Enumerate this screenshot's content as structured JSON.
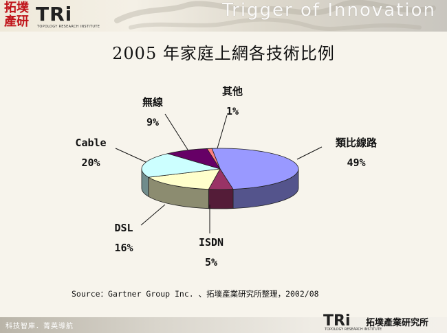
{
  "header": {
    "logo_cn": "拓墣產研",
    "logo_tri": "TRi",
    "logo_sub": "TOPOLOGY RESEARCH INSTITUTE",
    "tagline": "Trigger of Innovation"
  },
  "chart_data": {
    "type": "pie",
    "title": "2005 年家庭上網各技術比例",
    "slices": [
      {
        "label": "類比線路",
        "value": 49,
        "value_label": "49%",
        "color": "#9999ff"
      },
      {
        "label": "ISDN",
        "value": 5,
        "value_label": "5%",
        "color": "#993366"
      },
      {
        "label": "DSL",
        "value": 16,
        "value_label": "16%",
        "color": "#ffffcc"
      },
      {
        "label": "Cable",
        "value": 20,
        "value_label": "20%",
        "color": "#ccffff"
      },
      {
        "label": "無線",
        "value": 9,
        "value_label": "9%",
        "color": "#660066"
      },
      {
        "label": "其他",
        "value": 1,
        "value_label": "1%",
        "color": "#ff8080"
      }
    ]
  },
  "source": "Source：Gartner Group Inc. 、拓墣產業研究所整理，2002/08",
  "footer": {
    "left_text": "科技智庫．菁英導航",
    "logo_tri": "TRi",
    "logo_sub": "TOPOLOGY RESEARCH INSTITUTE",
    "logo_cn": "拓墣產業研究所"
  }
}
